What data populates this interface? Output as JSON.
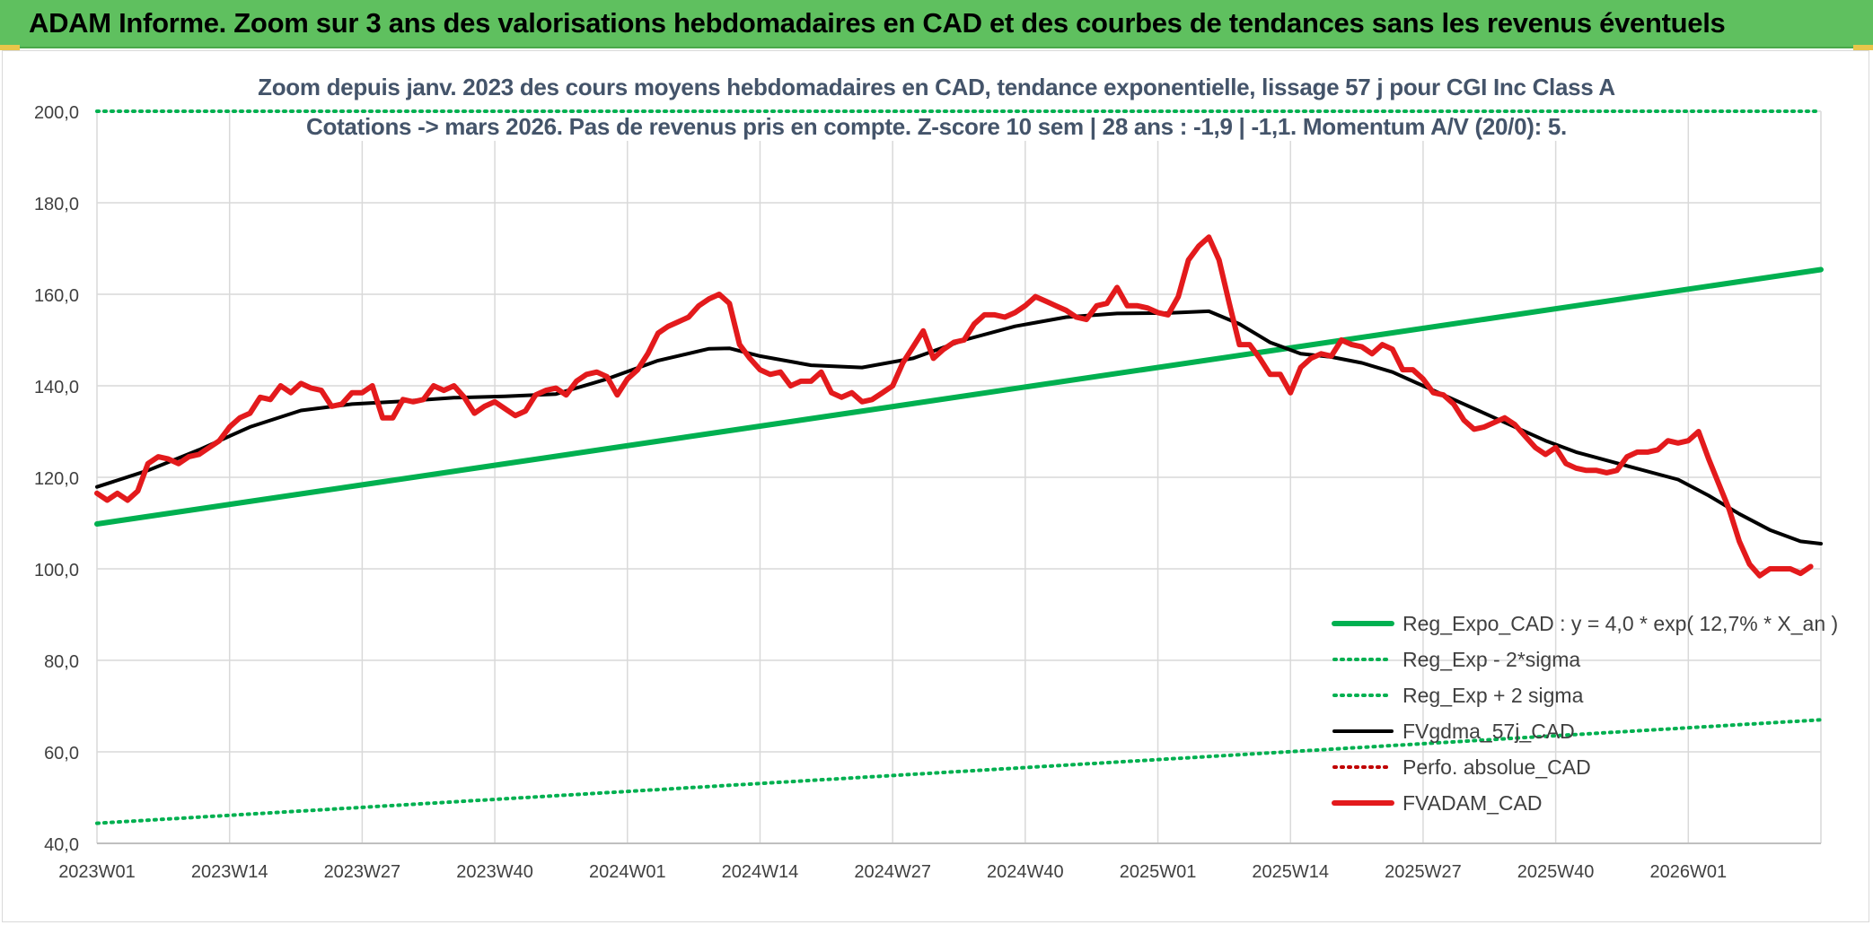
{
  "banner": {
    "title": "ADAM Informe. Zoom sur 3 ans des valorisations hebdomadaires en CAD et des courbes de tendances sans les revenus éventuels"
  },
  "colors": {
    "banner": "#5fc05f",
    "reg_expo": "#00b050",
    "fvgdma": "#000000",
    "fvadam": "#e31a1c",
    "perfo": "#c00000",
    "subtitle": "#44546a",
    "grid": "#d9d9d9"
  },
  "chart_data": {
    "type": "line",
    "title": "Zoom depuis janv. 2023 des cours moyens hebdomadaires en CAD, tendance exponentielle, lissage 57 j pour CGI Inc Class A",
    "subtitle": "Cotations -> mars 2026. Pas de revenus pris en compte. Z-score 10 sem | 28 ans : -1,9 | -1,1. Momentum A/V (20/0): 5.",
    "xlabel": "",
    "ylabel": "",
    "ylim": [
      40,
      200
    ],
    "yticks": [
      "40,0",
      "60,0",
      "80,0",
      "100,0",
      "120,0",
      "140,0",
      "160,0",
      "180,0",
      "200,0"
    ],
    "yticks_values": [
      40,
      60,
      80,
      100,
      120,
      140,
      160,
      180,
      200
    ],
    "xlim": [
      0,
      169
    ],
    "xticks": [
      "2023W01",
      "2023W14",
      "2023W27",
      "2023W40",
      "2024W01",
      "2024W14",
      "2024W27",
      "2024W40",
      "2025W01",
      "2025W14",
      "2025W27",
      "2025W40",
      "2026W01"
    ],
    "xticks_values": [
      0,
      13,
      26,
      39,
      52,
      65,
      78,
      91,
      104,
      117,
      130,
      143,
      156
    ],
    "grid": true,
    "legend_position": "bottom-right",
    "series": [
      {
        "name": "Reg_Expo_CAD : y = 4,0 * exp( 12,7% *  X_an )",
        "style": "solid-thick",
        "color": "#00b050",
        "points": [
          [
            0,
            109.8
          ],
          [
            169,
            165.4
          ]
        ]
      },
      {
        "name": "Reg_Exp - 2*sigma",
        "style": "dotted",
        "color": "#00b050",
        "points": [
          [
            0,
            44.4
          ],
          [
            169,
            67.0
          ]
        ]
      },
      {
        "name": "Reg_Exp + 2 sigma",
        "style": "dotted",
        "color": "#00b050",
        "points": [
          [
            0,
            200.0
          ],
          [
            20,
            200.0
          ],
          [
            147,
            200.0
          ],
          [
            169,
            200.0
          ]
        ]
      },
      {
        "name": "FVgdma_57j_CAD",
        "style": "solid",
        "color": "#000000",
        "points": [
          [
            0,
            117.9
          ],
          [
            5,
            121.5
          ],
          [
            10,
            126.0
          ],
          [
            15,
            131.0
          ],
          [
            20,
            134.6
          ],
          [
            25,
            136.0
          ],
          [
            30,
            136.6
          ],
          [
            35,
            137.4
          ],
          [
            40,
            137.7
          ],
          [
            45,
            138.2
          ],
          [
            50,
            141.5
          ],
          [
            55,
            145.5
          ],
          [
            60,
            148.1
          ],
          [
            62,
            148.2
          ],
          [
            65,
            146.5
          ],
          [
            70,
            144.5
          ],
          [
            75,
            144.0
          ],
          [
            80,
            146.0
          ],
          [
            85,
            150.0
          ],
          [
            90,
            153.0
          ],
          [
            95,
            155.0
          ],
          [
            100,
            155.8
          ],
          [
            105,
            155.9
          ],
          [
            109,
            156.3
          ],
          [
            112,
            153.5
          ],
          [
            115,
            149.5
          ],
          [
            118,
            147.0
          ],
          [
            121,
            146.3
          ],
          [
            124,
            145.0
          ],
          [
            127,
            143.0
          ],
          [
            130,
            140.0
          ],
          [
            133,
            137.0
          ],
          [
            136,
            134.0
          ],
          [
            139,
            131.0
          ],
          [
            142,
            128.0
          ],
          [
            145,
            125.5
          ],
          [
            150,
            122.5
          ],
          [
            155,
            119.5
          ],
          [
            158,
            116.0
          ],
          [
            161,
            112.0
          ],
          [
            164,
            108.5
          ],
          [
            167,
            106.0
          ],
          [
            169,
            105.5
          ]
        ]
      },
      {
        "name": "Perfo. absolue_CAD",
        "style": "dotted",
        "color": "#c00000",
        "points": []
      },
      {
        "name": "FVADAM_CAD",
        "style": "solid-thick",
        "color": "#e31a1c",
        "points": [
          [
            0,
            116.5
          ],
          [
            1,
            115.0
          ],
          [
            2,
            116.5
          ],
          [
            3,
            115.0
          ],
          [
            4,
            117.0
          ],
          [
            5,
            123.0
          ],
          [
            6,
            124.5
          ],
          [
            7,
            124.0
          ],
          [
            8,
            123.0
          ],
          [
            9,
            124.5
          ],
          [
            10,
            125.0
          ],
          [
            11,
            126.5
          ],
          [
            12,
            128.0
          ],
          [
            13,
            131.0
          ],
          [
            14,
            133.0
          ],
          [
            15,
            134.0
          ],
          [
            16,
            137.5
          ],
          [
            17,
            137.0
          ],
          [
            18,
            140.0
          ],
          [
            19,
            138.5
          ],
          [
            20,
            140.5
          ],
          [
            21,
            139.5
          ],
          [
            22,
            139.0
          ],
          [
            23,
            135.5
          ],
          [
            24,
            136.0
          ],
          [
            25,
            138.5
          ],
          [
            26,
            138.5
          ],
          [
            27,
            140.0
          ],
          [
            28,
            133.0
          ],
          [
            29,
            133.0
          ],
          [
            30,
            137.0
          ],
          [
            31,
            136.5
          ],
          [
            32,
            137.0
          ],
          [
            33,
            140.0
          ],
          [
            34,
            139.0
          ],
          [
            35,
            140.0
          ],
          [
            36,
            137.5
          ],
          [
            37,
            134.0
          ],
          [
            38,
            135.5
          ],
          [
            39,
            136.5
          ],
          [
            40,
            135.0
          ],
          [
            41,
            133.5
          ],
          [
            42,
            134.5
          ],
          [
            43,
            138.0
          ],
          [
            44,
            139.0
          ],
          [
            45,
            139.5
          ],
          [
            46,
            138.0
          ],
          [
            47,
            141.0
          ],
          [
            48,
            142.5
          ],
          [
            49,
            143.0
          ],
          [
            50,
            142.0
          ],
          [
            51,
            138.0
          ],
          [
            52,
            141.5
          ],
          [
            53,
            143.5
          ],
          [
            54,
            147.0
          ],
          [
            55,
            151.5
          ],
          [
            56,
            153.0
          ],
          [
            57,
            154.0
          ],
          [
            58,
            155.0
          ],
          [
            59,
            157.5
          ],
          [
            60,
            159.0
          ],
          [
            61,
            160.0
          ],
          [
            62,
            158.0
          ],
          [
            63,
            149.0
          ],
          [
            64,
            146.0
          ],
          [
            65,
            143.5
          ],
          [
            66,
            142.5
          ],
          [
            67,
            143.0
          ],
          [
            68,
            140.0
          ],
          [
            69,
            141.0
          ],
          [
            70,
            141.0
          ],
          [
            71,
            143.0
          ],
          [
            72,
            138.5
          ],
          [
            73,
            137.5
          ],
          [
            74,
            138.5
          ],
          [
            75,
            136.5
          ],
          [
            76,
            137.0
          ],
          [
            77,
            138.5
          ],
          [
            78,
            140.0
          ],
          [
            79,
            145.0
          ],
          [
            80,
            148.5
          ],
          [
            81,
            152.0
          ],
          [
            82,
            146.0
          ],
          [
            83,
            148.0
          ],
          [
            84,
            149.5
          ],
          [
            85,
            150.0
          ],
          [
            86,
            153.5
          ],
          [
            87,
            155.5
          ],
          [
            88,
            155.5
          ],
          [
            89,
            155.0
          ],
          [
            90,
            156.0
          ],
          [
            91,
            157.5
          ],
          [
            92,
            159.5
          ],
          [
            93,
            158.5
          ],
          [
            94,
            157.5
          ],
          [
            95,
            156.5
          ],
          [
            96,
            155.0
          ],
          [
            97,
            154.5
          ],
          [
            98,
            157.5
          ],
          [
            99,
            158.0
          ],
          [
            100,
            161.5
          ],
          [
            101,
            157.5
          ],
          [
            102,
            157.5
          ],
          [
            103,
            157.0
          ],
          [
            104,
            156.0
          ],
          [
            105,
            155.5
          ],
          [
            106,
            159.5
          ],
          [
            107,
            167.5
          ],
          [
            108,
            170.5
          ],
          [
            109,
            172.5
          ],
          [
            110,
            167.5
          ],
          [
            111,
            158.0
          ],
          [
            112,
            149.0
          ],
          [
            113,
            149.0
          ],
          [
            114,
            146.0
          ],
          [
            115,
            142.5
          ],
          [
            116,
            142.5
          ],
          [
            117,
            138.5
          ],
          [
            118,
            144.0
          ],
          [
            119,
            146.0
          ],
          [
            120,
            147.0
          ],
          [
            121,
            146.5
          ],
          [
            122,
            150.0
          ],
          [
            123,
            149.0
          ],
          [
            124,
            148.5
          ],
          [
            125,
            147.0
          ],
          [
            126,
            149.0
          ],
          [
            127,
            148.0
          ],
          [
            128,
            143.5
          ],
          [
            129,
            143.5
          ],
          [
            130,
            141.5
          ],
          [
            131,
            138.5
          ],
          [
            132,
            138.0
          ],
          [
            133,
            136.0
          ],
          [
            134,
            132.5
          ],
          [
            135,
            130.5
          ],
          [
            136,
            131.0
          ],
          [
            137,
            132.0
          ],
          [
            138,
            133.0
          ],
          [
            139,
            131.5
          ],
          [
            140,
            129.0
          ],
          [
            141,
            126.5
          ],
          [
            142,
            125.0
          ],
          [
            143,
            126.5
          ],
          [
            144,
            123.0
          ],
          [
            145,
            122.0
          ],
          [
            146,
            121.5
          ],
          [
            147,
            121.5
          ],
          [
            148,
            121.0
          ],
          [
            149,
            121.5
          ],
          [
            150,
            124.5
          ],
          [
            151,
            125.5
          ],
          [
            152,
            125.5
          ],
          [
            153,
            126.0
          ],
          [
            154,
            128.0
          ],
          [
            155,
            127.5
          ],
          [
            156,
            128.0
          ],
          [
            157,
            130.0
          ],
          [
            158,
            124.0
          ],
          [
            159,
            118.5
          ],
          [
            160,
            113.0
          ],
          [
            161,
            106.0
          ],
          [
            162,
            101.0
          ],
          [
            163,
            98.5
          ],
          [
            164,
            100.0
          ],
          [
            165,
            100.0
          ],
          [
            166,
            100.0
          ],
          [
            167,
            99.0
          ],
          [
            168,
            100.5
          ]
        ]
      }
    ]
  }
}
